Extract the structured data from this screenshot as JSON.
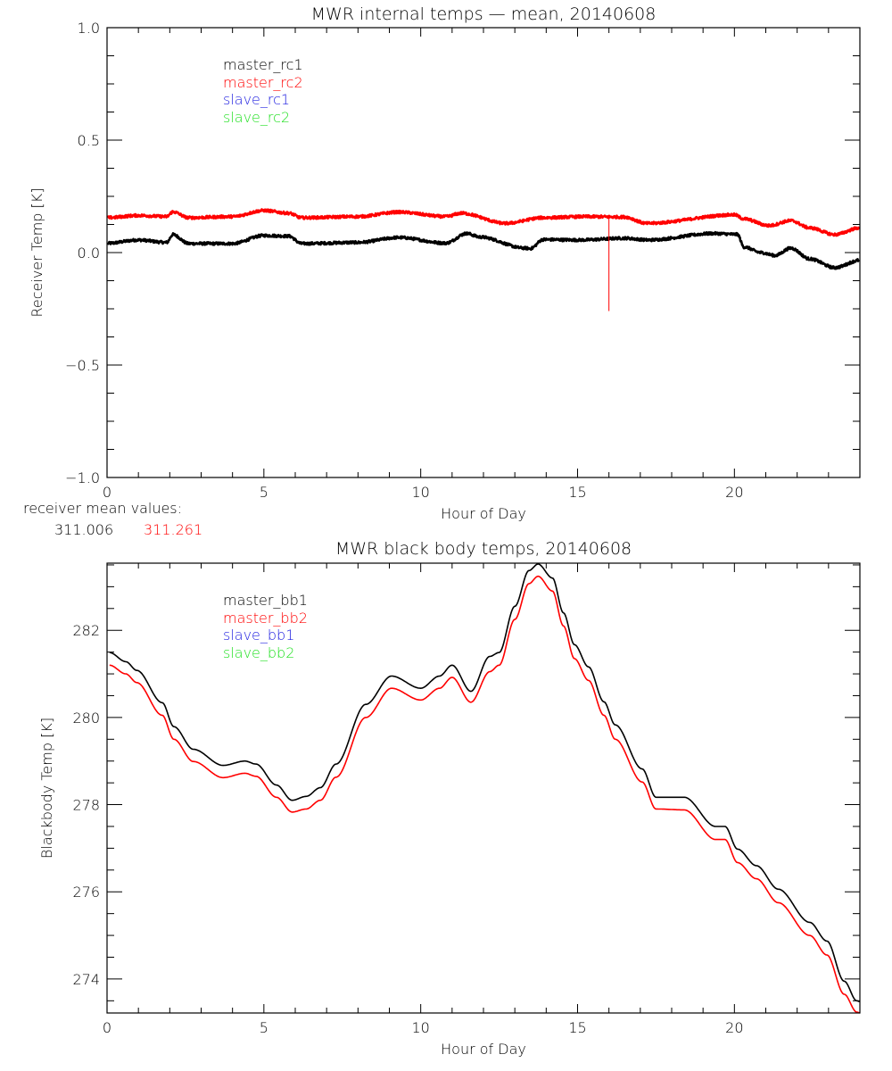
{
  "colors": {
    "master1": "#000000",
    "master2": "#ff0000",
    "slave1": "#2020e0",
    "slave2": "#22e022",
    "axis": "#000000"
  },
  "receiver_mean": {
    "label": "receiver mean values:",
    "master1": "311.006",
    "master2": "311.261"
  },
  "chart_data": [
    {
      "type": "line",
      "title": "MWR internal temps — mean, 20140608",
      "xlabel": "Hour of Day",
      "ylabel": "Receiver Temp [K]",
      "xlim": [
        0,
        24
      ],
      "ylim": [
        -1.0,
        1.0
      ],
      "xticks": [
        0,
        5,
        10,
        15,
        20
      ],
      "xtick_labels": [
        "0",
        "5",
        "10",
        "15",
        "20"
      ],
      "yticks": [
        -1.0,
        -0.5,
        0.0,
        0.5,
        1.0
      ],
      "ytick_labels": [
        "−1.0",
        "−0.5",
        "0.0",
        "0.5",
        "1.0"
      ],
      "legend": {
        "placement": "top-left",
        "entries": [
          "master_rc1",
          "master_rc2",
          "slave_rc1",
          "slave_rc2"
        ]
      },
      "noise": 0.006,
      "series": [
        {
          "name": "master_rc1",
          "x": [
            0,
            1,
            1.9,
            2.1,
            2.6,
            4,
            5,
            5.8,
            6.2,
            8,
            9.3,
            10.8,
            11.46,
            11.9,
            13.3,
            13.5,
            13.9,
            15.1,
            16.5,
            17.25,
            19.33,
            20.1,
            20.3,
            20.85,
            21.3,
            21.8,
            22.4,
            23.2,
            24
          ],
          "y": [
            0.041,
            0.056,
            0.045,
            0.08,
            0.04,
            0.04,
            0.076,
            0.073,
            0.04,
            0.045,
            0.067,
            0.042,
            0.085,
            0.069,
            0.02,
            0.018,
            0.058,
            0.056,
            0.064,
            0.056,
            0.085,
            0.081,
            0.025,
            0.0,
            -0.013,
            0.02,
            -0.028,
            -0.067,
            -0.034
          ]
        },
        {
          "name": "master_rc2",
          "x": [
            0,
            1,
            1.9,
            2.1,
            2.6,
            4,
            5,
            5.8,
            6.2,
            8,
            9.3,
            10.8,
            11.3,
            12.7,
            13.9,
            15.3,
            16.5,
            17.2,
            20,
            20.3,
            21.1,
            21.8,
            22.4,
            23.2,
            24
          ],
          "y": [
            0.155,
            0.165,
            0.16,
            0.181,
            0.155,
            0.16,
            0.187,
            0.175,
            0.155,
            0.16,
            0.18,
            0.16,
            0.175,
            0.13,
            0.155,
            0.16,
            0.158,
            0.13,
            0.168,
            0.15,
            0.12,
            0.142,
            0.11,
            0.08,
            0.11
          ],
          "spike": {
            "x": 16.0,
            "y": -0.26
          }
        },
        {
          "name": "slave_rc1",
          "x": [],
          "y": []
        },
        {
          "name": "slave_rc2",
          "x": [],
          "y": []
        }
      ]
    },
    {
      "type": "line",
      "title": "MWR black body temps, 20140608",
      "xlabel": "Hour of Day",
      "ylabel": "Blackbody Temp [K]",
      "xlim": [
        0,
        24
      ],
      "ylim": [
        273.22,
        283.54
      ],
      "xticks": [
        0,
        5,
        10,
        15,
        20
      ],
      "xtick_labels": [
        "0",
        "5",
        "10",
        "15",
        "20"
      ],
      "yticks": [
        274,
        276,
        278,
        280,
        282
      ],
      "ytick_labels": [
        "274",
        "276",
        "278",
        "280",
        "282"
      ],
      "legend": {
        "placement": "top-left",
        "entries": [
          "master_bb1",
          "master_bb2",
          "slave_bb1",
          "slave_bb2"
        ]
      },
      "series": [
        {
          "name": "master_bb1",
          "x": [
            0.08,
            0.6,
            0.95,
            1.76,
            2.13,
            2.75,
            3.7,
            4.4,
            4.75,
            5.4,
            5.9,
            6.35,
            6.8,
            7.3,
            8.25,
            9.07,
            10.0,
            10.6,
            11.0,
            11.6,
            12.2,
            12.5,
            13.0,
            13.45,
            13.74,
            14.2,
            14.55,
            14.9,
            15.35,
            15.84,
            16.2,
            17.06,
            17.5,
            18.4,
            19.4,
            19.7,
            20.1,
            20.7,
            21.4,
            22.4,
            22.95,
            23.5,
            23.9,
            24.0
          ],
          "y": [
            281.49,
            281.28,
            281.08,
            280.34,
            279.79,
            279.27,
            278.9,
            279.0,
            278.93,
            278.45,
            278.1,
            278.19,
            278.39,
            278.93,
            280.3,
            280.95,
            280.67,
            280.95,
            281.2,
            280.6,
            281.4,
            281.49,
            282.55,
            283.37,
            283.52,
            283.2,
            282.4,
            281.67,
            281.16,
            280.36,
            279.83,
            278.82,
            278.17,
            278.17,
            277.5,
            277.5,
            276.98,
            276.6,
            276.06,
            275.3,
            274.87,
            273.95,
            273.5,
            273.48
          ]
        },
        {
          "name": "master_bb2",
          "x": [
            0.08,
            0.6,
            0.95,
            1.76,
            2.13,
            2.75,
            3.7,
            4.4,
            4.75,
            5.4,
            5.9,
            6.35,
            6.8,
            7.3,
            8.25,
            9.07,
            10.0,
            10.6,
            11.0,
            11.6,
            12.2,
            12.5,
            13.0,
            13.45,
            13.74,
            14.2,
            14.55,
            14.9,
            15.35,
            15.84,
            16.2,
            17.06,
            17.5,
            18.4,
            19.4,
            19.7,
            20.1,
            20.7,
            21.4,
            22.4,
            22.95,
            23.5,
            23.9,
            24.0
          ],
          "y": [
            281.2,
            281.0,
            280.8,
            280.05,
            279.5,
            278.99,
            278.62,
            278.72,
            278.65,
            278.17,
            277.83,
            277.9,
            278.1,
            278.63,
            280.0,
            280.67,
            280.4,
            280.67,
            280.92,
            280.35,
            281.05,
            281.2,
            282.25,
            283.07,
            283.24,
            282.9,
            282.1,
            281.35,
            280.85,
            280.05,
            279.5,
            278.52,
            277.9,
            277.88,
            277.2,
            277.2,
            276.67,
            276.3,
            275.75,
            275.0,
            274.55,
            273.65,
            273.24,
            273.22
          ]
        },
        {
          "name": "slave_bb1",
          "x": [],
          "y": []
        },
        {
          "name": "slave_bb2",
          "x": [],
          "y": []
        }
      ]
    }
  ]
}
